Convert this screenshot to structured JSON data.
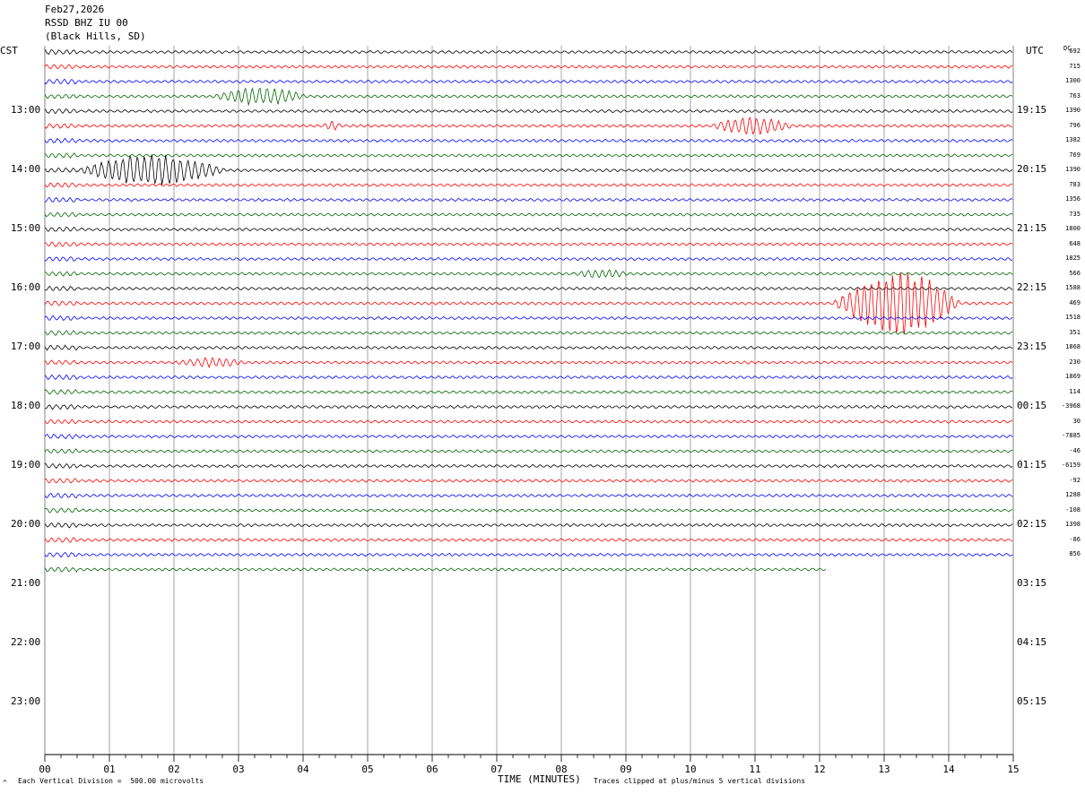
{
  "header": {
    "date": "Feb27,2026",
    "station": "RSSD BHZ IU 00",
    "location": "(Black Hills, SD)"
  },
  "left_zone": "CST",
  "right_zone": "UTC",
  "dc_label": "DC",
  "footer": {
    "scale_note": "Each Vertical Division =  500.00 microvolts",
    "axis_title": "TIME (MINUTES)",
    "clip_note": "Traces clipped at plus/minus 5 vertical divisions",
    "corner_mark": "^"
  },
  "colors": {
    "trace_cycle": [
      "#000000",
      "#ff0000",
      "#0000ff",
      "#006400"
    ],
    "grid": "#808080"
  },
  "chart_data": {
    "type": "line",
    "title": "",
    "xlabel": "TIME (MINUTES)",
    "xlim": [
      0,
      15
    ],
    "x_ticks": [
      "00",
      "01",
      "02",
      "03",
      "04",
      "05",
      "06",
      "07",
      "08",
      "09",
      "10",
      "11",
      "12",
      "13",
      "14",
      "15"
    ],
    "row_interval_minutes": 15,
    "rows_total": 48,
    "rows_with_data": 36,
    "last_row_end_minute": 12.1,
    "hour_labels_cst": [
      "13:00",
      "14:00",
      "15:00",
      "16:00",
      "17:00",
      "18:00",
      "19:00",
      "20:00",
      "21:00",
      "22:00",
      "23:00"
    ],
    "hour_labels_utc": [
      "19:15",
      "20:15",
      "21:15",
      "22:15",
      "23:15",
      "00:15",
      "01:15",
      "02:15",
      "03:15",
      "04:15",
      "05:15"
    ],
    "first_hour_row": 4,
    "dc_offsets": [
      "692",
      "715",
      "1300",
      "763",
      "1390",
      "796",
      "1382",
      "769",
      "1390",
      "783",
      "1356",
      "735",
      "1800",
      "648",
      "1825",
      "566",
      "1588",
      "469",
      "1518",
      "351",
      "1868",
      "230",
      "1869",
      "114",
      "-3968",
      "30",
      "-7885",
      "-46",
      "-6159",
      "-92",
      "1288",
      "-108",
      "1398",
      "-86",
      "856",
      ""
    ],
    "events": [
      {
        "row": 3,
        "start_min": 2.6,
        "end_min": 4.5,
        "amplitude": "moderate"
      },
      {
        "row": 5,
        "start_min": 4.3,
        "end_min": 4.7,
        "amplitude": "small"
      },
      {
        "row": 5,
        "start_min": 10.3,
        "end_min": 12.0,
        "amplitude": "moderate"
      },
      {
        "row": 8,
        "start_min": 0.5,
        "end_min": 3.5,
        "amplitude": "large"
      },
      {
        "row": 15,
        "start_min": 8.2,
        "end_min": 9.3,
        "amplitude": "small"
      },
      {
        "row": 17,
        "start_min": 12.2,
        "end_min": 14.8,
        "amplitude": "clipped"
      },
      {
        "row": 21,
        "start_min": 2.0,
        "end_min": 3.5,
        "amplitude": "small"
      }
    ]
  }
}
